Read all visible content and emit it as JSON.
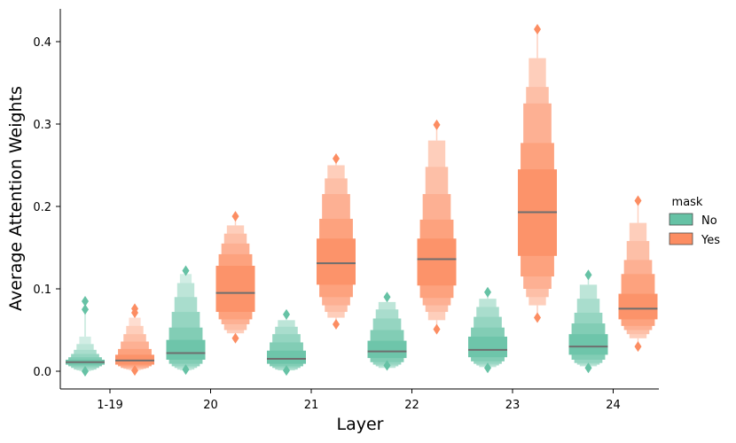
{
  "chart_data": {
    "type": "boxenplot",
    "xlabel": "Layer",
    "ylabel": "Average Attention Weights",
    "categories": [
      "1-19",
      "20",
      "21",
      "22",
      "23",
      "24"
    ],
    "ylim": [
      -0.02,
      0.44
    ],
    "yticks": [
      0.0,
      0.1,
      0.2,
      0.3,
      0.4
    ],
    "ytick_labels": [
      "0.0",
      "0.1",
      "0.2",
      "0.3",
      "0.4"
    ],
    "legend": {
      "title": "mask",
      "position": "right"
    },
    "series": [
      {
        "name": "No",
        "color": "#66c2a5",
        "groups": [
          {
            "median": 0.011,
            "levels": [
              [
                0.008,
                0.014
              ],
              [
                0.006,
                0.017
              ],
              [
                0.004,
                0.021
              ],
              [
                0.002,
                0.026
              ],
              [
                0.001,
                0.033
              ],
              [
                0.0,
                0.042
              ]
            ],
            "outliers": [
              0.075,
              0.085,
              0.0
            ]
          },
          {
            "median": 0.022,
            "levels": [
              [
                0.014,
                0.038
              ],
              [
                0.009,
                0.053
              ],
              [
                0.006,
                0.072
              ],
              [
                0.004,
                0.09
              ],
              [
                0.002,
                0.107
              ],
              [
                0.001,
                0.118
              ]
            ],
            "outliers": [
              0.122,
              0.002
            ]
          },
          {
            "median": 0.015,
            "levels": [
              [
                0.009,
                0.025
              ],
              [
                0.006,
                0.035
              ],
              [
                0.004,
                0.045
              ],
              [
                0.002,
                0.054
              ],
              [
                0.001,
                0.062
              ]
            ],
            "outliers": [
              0.069,
              0.001
            ]
          },
          {
            "median": 0.024,
            "levels": [
              [
                0.016,
                0.037
              ],
              [
                0.011,
                0.05
              ],
              [
                0.008,
                0.064
              ],
              [
                0.006,
                0.075
              ],
              [
                0.004,
                0.084
              ]
            ],
            "outliers": [
              0.09,
              0.007
            ]
          },
          {
            "median": 0.026,
            "levels": [
              [
                0.017,
                0.042
              ],
              [
                0.012,
                0.053
              ],
              [
                0.009,
                0.066
              ],
              [
                0.007,
                0.078
              ],
              [
                0.005,
                0.088
              ]
            ],
            "outliers": [
              0.096,
              0.004
            ]
          },
          {
            "median": 0.03,
            "levels": [
              [
                0.02,
                0.045
              ],
              [
                0.014,
                0.058
              ],
              [
                0.01,
                0.071
              ],
              [
                0.008,
                0.088
              ],
              [
                0.006,
                0.105
              ]
            ],
            "outliers": [
              0.117,
              0.004
            ]
          }
        ]
      },
      {
        "name": "Yes",
        "color": "#fc8d62",
        "groups": [
          {
            "median": 0.013,
            "levels": [
              [
                0.008,
                0.02
              ],
              [
                0.006,
                0.027
              ],
              [
                0.004,
                0.036
              ],
              [
                0.003,
                0.045
              ],
              [
                0.002,
                0.055
              ],
              [
                0.001,
                0.065
              ]
            ],
            "outliers": [
              0.071,
              0.076,
              0.001
            ]
          },
          {
            "median": 0.095,
            "levels": [
              [
                0.072,
                0.128
              ],
              [
                0.063,
                0.142
              ],
              [
                0.057,
                0.155
              ],
              [
                0.05,
                0.167
              ],
              [
                0.046,
                0.177
              ]
            ],
            "outliers": [
              0.188,
              0.04
            ]
          },
          {
            "median": 0.131,
            "levels": [
              [
                0.105,
                0.161
              ],
              [
                0.09,
                0.185
              ],
              [
                0.08,
                0.215
              ],
              [
                0.072,
                0.234
              ],
              [
                0.065,
                0.25
              ]
            ],
            "outliers": [
              0.258,
              0.057
            ]
          },
          {
            "median": 0.136,
            "levels": [
              [
                0.104,
                0.161
              ],
              [
                0.089,
                0.184
              ],
              [
                0.08,
                0.215
              ],
              [
                0.072,
                0.248
              ],
              [
                0.062,
                0.28
              ]
            ],
            "outliers": [
              0.299,
              0.051
            ]
          },
          {
            "median": 0.193,
            "levels": [
              [
                0.14,
                0.245
              ],
              [
                0.115,
                0.277
              ],
              [
                0.1,
                0.325
              ],
              [
                0.09,
                0.345
              ],
              [
                0.08,
                0.38
              ]
            ],
            "outliers": [
              0.415,
              0.065
            ]
          },
          {
            "median": 0.076,
            "levels": [
              [
                0.063,
                0.094
              ],
              [
                0.055,
                0.118
              ],
              [
                0.05,
                0.135
              ],
              [
                0.045,
                0.158
              ],
              [
                0.04,
                0.18
              ]
            ],
            "outliers": [
              0.207,
              0.03
            ]
          }
        ]
      }
    ]
  }
}
